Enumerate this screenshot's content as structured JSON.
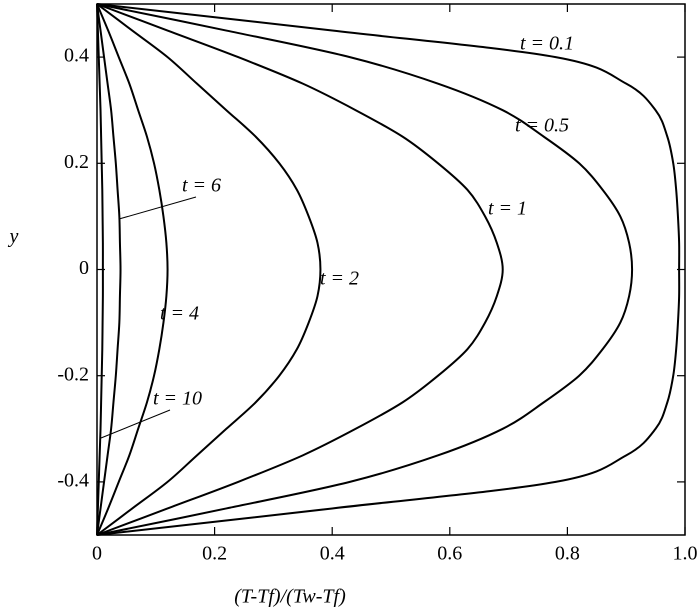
{
  "chart_data": {
    "type": "line",
    "xlabel": "(T-Tf)/(Tw-Tf)",
    "ylabel": "y",
    "y": [
      0.5,
      0.45,
      0.4,
      0.35,
      0.3,
      0.25,
      0.2,
      0.15,
      0.1,
      0.05,
      0,
      -0.05,
      -0.1,
      -0.15,
      -0.2,
      -0.25,
      -0.3,
      -0.35,
      -0.4,
      -0.45,
      -0.5
    ],
    "series": [
      {
        "name": "t = 0.1",
        "color": "#000000",
        "x": [
          0,
          0.4,
          0.78,
          0.9,
          0.95,
          0.97,
          0.98,
          0.985,
          0.988,
          0.99,
          0.99,
          0.99,
          0.988,
          0.985,
          0.98,
          0.97,
          0.95,
          0.9,
          0.78,
          0.4,
          0
        ]
      },
      {
        "name": "t = 0.5",
        "color": "#000000",
        "x": [
          0,
          0.22,
          0.43,
          0.58,
          0.69,
          0.76,
          0.82,
          0.86,
          0.89,
          0.905,
          0.91,
          0.905,
          0.89,
          0.86,
          0.82,
          0.76,
          0.69,
          0.58,
          0.43,
          0.22,
          0
        ]
      },
      {
        "name": "t = 1",
        "color": "#000000",
        "x": [
          0,
          0.12,
          0.24,
          0.35,
          0.44,
          0.52,
          0.58,
          0.63,
          0.66,
          0.68,
          0.69,
          0.68,
          0.66,
          0.63,
          0.58,
          0.52,
          0.44,
          0.35,
          0.24,
          0.12,
          0
        ]
      },
      {
        "name": "t = 2",
        "color": "#000000",
        "x": [
          0,
          0.06,
          0.12,
          0.17,
          0.22,
          0.27,
          0.31,
          0.34,
          0.36,
          0.375,
          0.38,
          0.375,
          0.36,
          0.34,
          0.31,
          0.27,
          0.22,
          0.17,
          0.12,
          0.06,
          0
        ]
      },
      {
        "name": "t = 4",
        "color": "#000000",
        "x": [
          0,
          0.019,
          0.037,
          0.055,
          0.07,
          0.085,
          0.097,
          0.106,
          0.113,
          0.118,
          0.12,
          0.118,
          0.113,
          0.106,
          0.097,
          0.085,
          0.07,
          0.055,
          0.037,
          0.019,
          0
        ]
      },
      {
        "name": "t = 6",
        "color": "#000000",
        "x": [
          0,
          0.006,
          0.012,
          0.018,
          0.024,
          0.028,
          0.032,
          0.035,
          0.038,
          0.039,
          0.04,
          0.039,
          0.038,
          0.035,
          0.032,
          0.028,
          0.024,
          0.018,
          0.012,
          0.006,
          0
        ]
      },
      {
        "name": "t = 10",
        "color": "#000000",
        "x": [
          0,
          0.0015,
          0.003,
          0.0045,
          0.006,
          0.007,
          0.008,
          0.009,
          0.0095,
          0.01,
          0.01,
          0.01,
          0.0095,
          0.009,
          0.008,
          0.007,
          0.006,
          0.0045,
          0.003,
          0.0015,
          0
        ]
      }
    ],
    "xlim": [
      0,
      1
    ],
    "ylim": [
      -0.5,
      0.5
    ],
    "xticks": [
      0,
      0.2,
      0.4,
      0.6,
      0.8,
      {
        "value": 1,
        "label": "1.0"
      }
    ],
    "yticks": [
      -0.4,
      -0.2,
      0,
      0.2,
      0.4
    ],
    "grid": false
  }
}
